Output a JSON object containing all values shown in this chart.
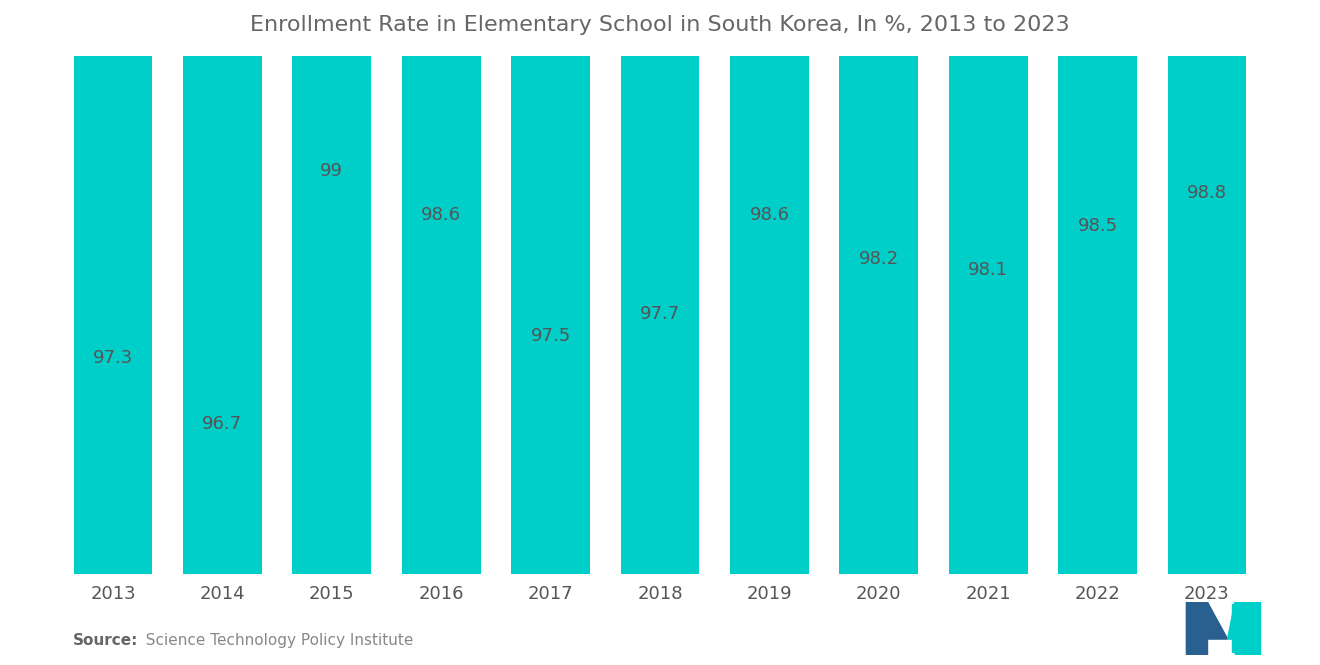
{
  "title": "Enrollment Rate in Elementary School in South Korea, In %, 2013 to 2023",
  "years": [
    2013,
    2014,
    2015,
    2016,
    2017,
    2018,
    2019,
    2020,
    2021,
    2022,
    2023
  ],
  "values": [
    97.3,
    96.7,
    99,
    98.6,
    97.5,
    97.7,
    98.6,
    98.2,
    98.1,
    98.5,
    98.8
  ],
  "bar_color": "#00CEC9",
  "background_color": "#ffffff",
  "title_fontsize": 16,
  "label_fontsize": 13,
  "tick_fontsize": 13,
  "source_bold": "Source:",
  "source_normal": "  Science Technology Policy Institute",
  "ylim_min": 95.5,
  "ylim_max": 100.2,
  "bar_width": 0.72
}
